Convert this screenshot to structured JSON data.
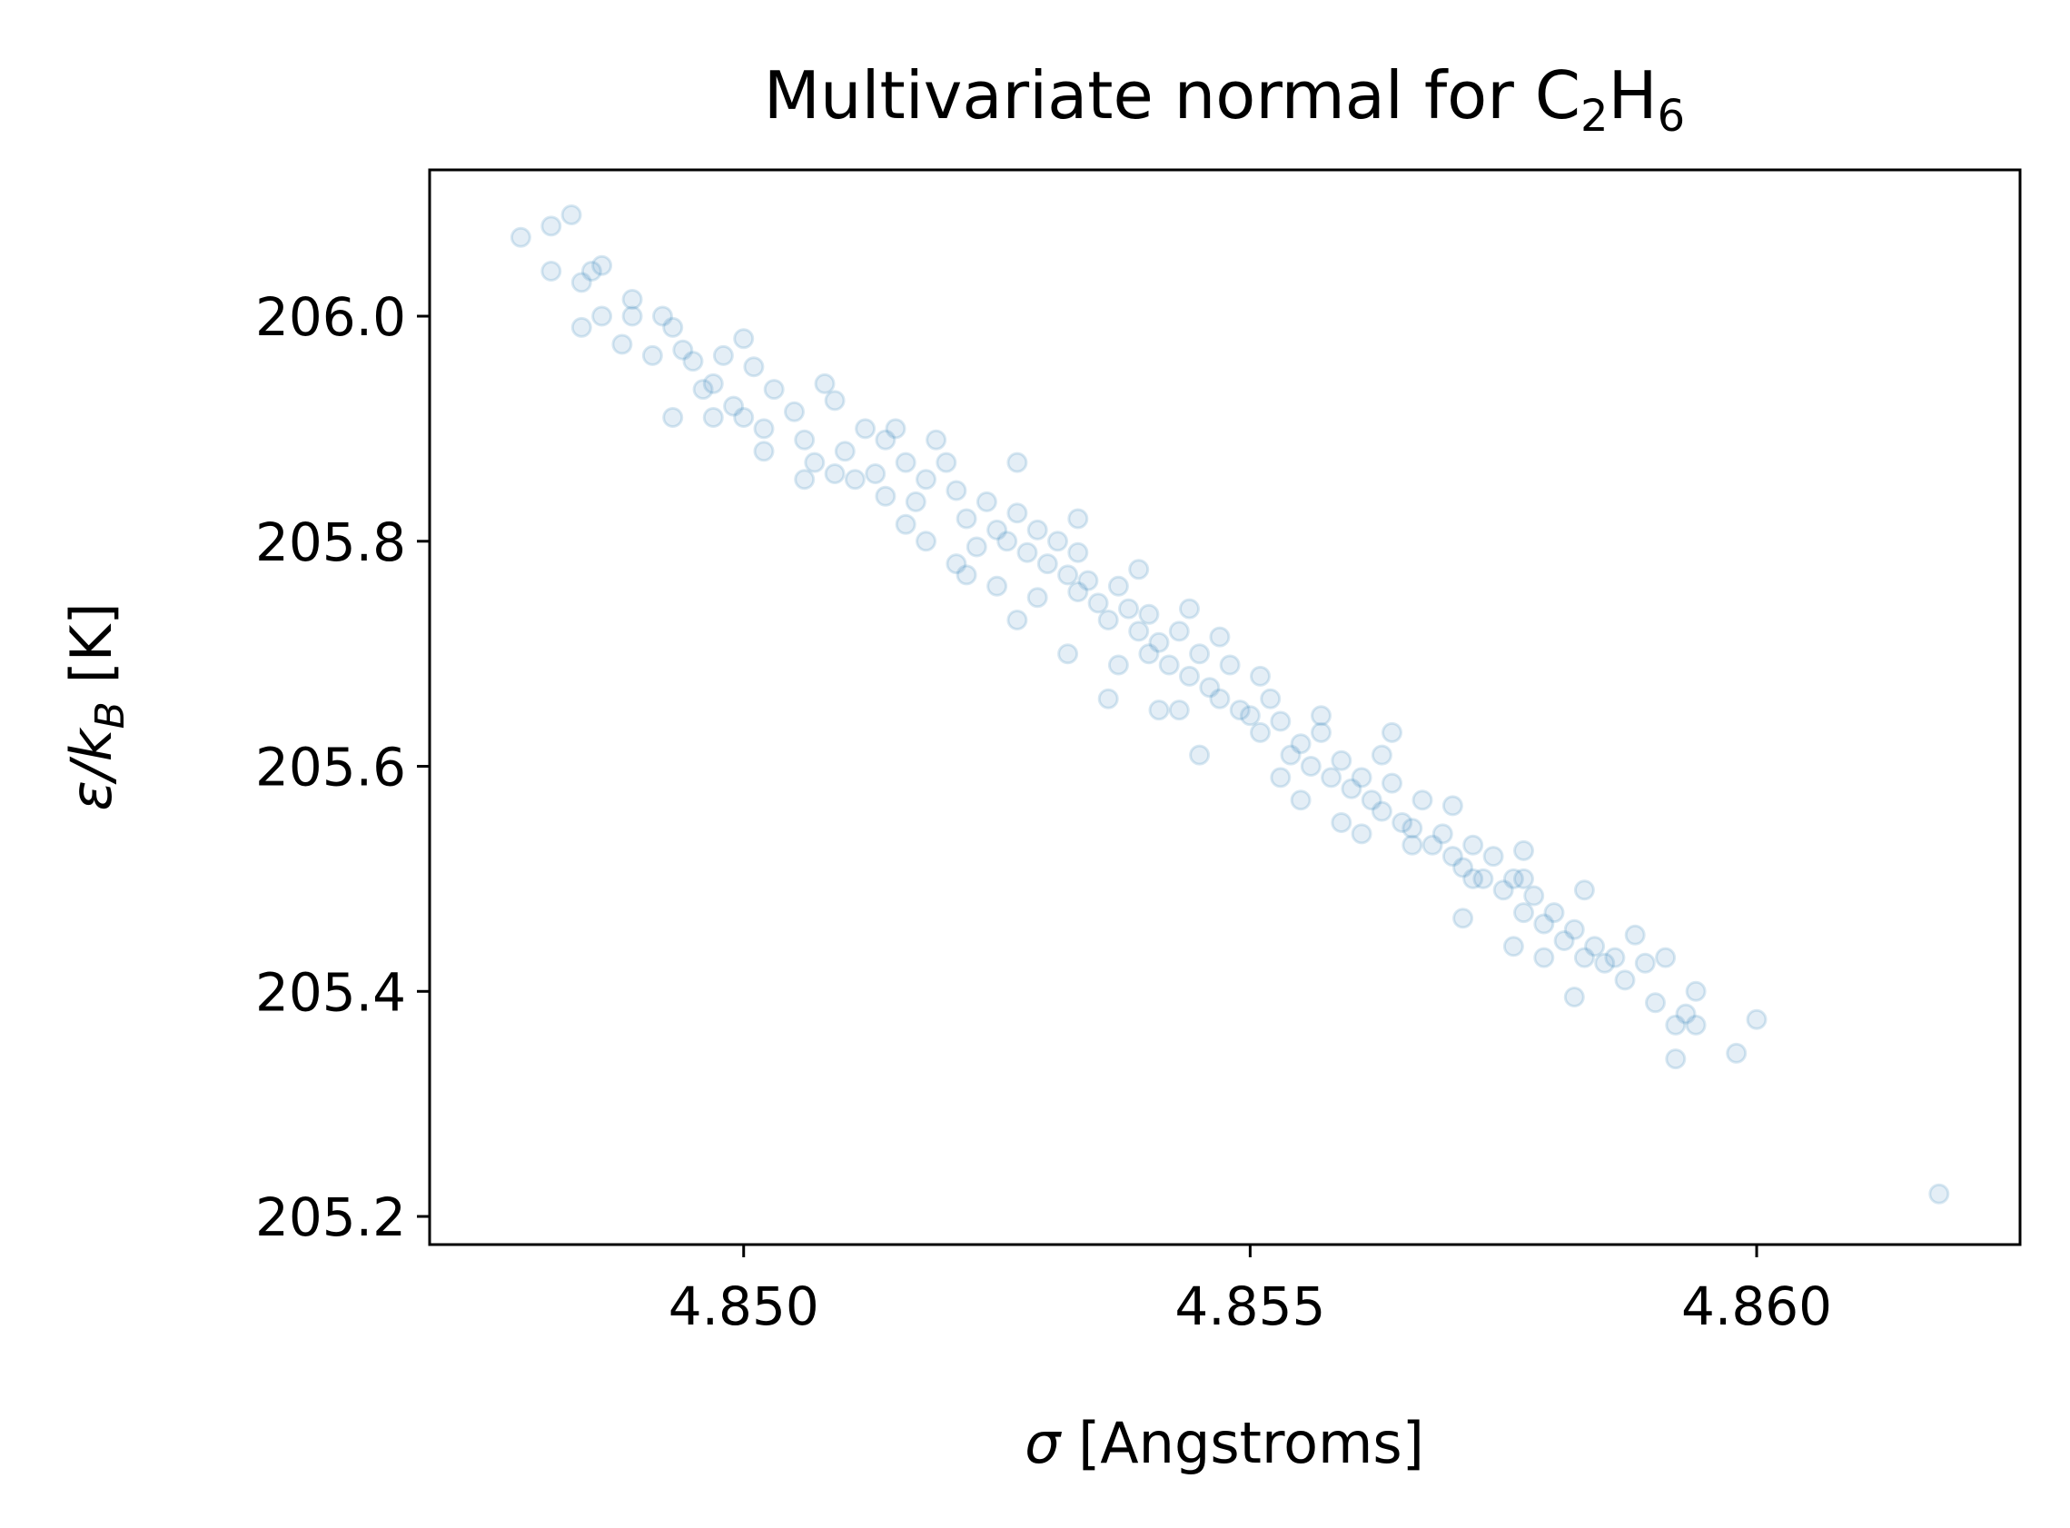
{
  "chart_data": {
    "type": "scatter",
    "title": {
      "main": "Multivariate normal for C",
      "sub1": "2",
      "mid": "H",
      "sub2": "6"
    },
    "xlabel": {
      "symbol": "σ",
      "text": " [Angstroms]"
    },
    "ylabel": {
      "symbol": "ε/k",
      "sub": "B",
      "text": " [K]"
    },
    "xlim": [
      4.8469,
      4.8626
    ],
    "ylim": [
      205.175,
      206.13
    ],
    "x_ticks": [
      4.85,
      4.855,
      4.86
    ],
    "x_tick_labels": [
      "4.850",
      "4.855",
      "4.860"
    ],
    "y_ticks": [
      205.2,
      205.4,
      205.6,
      205.8,
      206.0
    ],
    "y_tick_labels": [
      "205.2",
      "205.4",
      "205.6",
      "205.8",
      "206.0"
    ],
    "grid": false,
    "legend": "none",
    "series": [
      {
        "color": "#1f77b4",
        "marker": "circle",
        "alpha": 0.12,
        "points": [
          [
            4.8478,
            206.07
          ],
          [
            4.8481,
            206.08
          ],
          [
            4.8483,
            206.09
          ],
          [
            4.8481,
            206.04
          ],
          [
            4.8484,
            206.03
          ],
          [
            4.8485,
            206.04
          ],
          [
            4.8486,
            206.045
          ],
          [
            4.8484,
            205.99
          ],
          [
            4.8486,
            206.0
          ],
          [
            4.8489,
            206.015
          ],
          [
            4.8489,
            206.0
          ],
          [
            4.8488,
            205.975
          ],
          [
            4.8491,
            205.965
          ],
          [
            4.8492,
            206.0
          ],
          [
            4.8493,
            205.99
          ],
          [
            4.8494,
            205.97
          ],
          [
            4.8495,
            205.96
          ],
          [
            4.8496,
            205.935
          ],
          [
            4.8497,
            205.94
          ],
          [
            4.8498,
            205.965
          ],
          [
            4.85,
            205.98
          ],
          [
            4.8501,
            205.955
          ],
          [
            4.8499,
            205.92
          ],
          [
            4.8502,
            205.9
          ],
          [
            4.8503,
            205.935
          ],
          [
            4.8505,
            205.915
          ],
          [
            4.8506,
            205.89
          ],
          [
            4.8508,
            205.94
          ],
          [
            4.8509,
            205.925
          ],
          [
            4.8493,
            205.91
          ],
          [
            4.8497,
            205.91
          ],
          [
            4.85,
            205.91
          ],
          [
            4.8502,
            205.88
          ],
          [
            4.8507,
            205.87
          ],
          [
            4.851,
            205.88
          ],
          [
            4.8512,
            205.9
          ],
          [
            4.8514,
            205.89
          ],
          [
            4.8513,
            205.86
          ],
          [
            4.8516,
            205.87
          ],
          [
            4.8518,
            205.855
          ],
          [
            4.8519,
            205.89
          ],
          [
            4.852,
            205.87
          ],
          [
            4.8517,
            205.835
          ],
          [
            4.8521,
            205.845
          ],
          [
            4.8522,
            205.82
          ],
          [
            4.8524,
            205.835
          ],
          [
            4.8525,
            205.81
          ],
          [
            4.8523,
            205.795
          ],
          [
            4.8526,
            205.8
          ],
          [
            4.8527,
            205.825
          ],
          [
            4.8528,
            205.79
          ],
          [
            4.8529,
            205.81
          ],
          [
            4.853,
            205.78
          ],
          [
            4.8531,
            205.8
          ],
          [
            4.8532,
            205.77
          ],
          [
            4.8533,
            205.79
          ],
          [
            4.8533,
            205.755
          ],
          [
            4.8534,
            205.765
          ],
          [
            4.8535,
            205.745
          ],
          [
            4.8536,
            205.73
          ],
          [
            4.8537,
            205.76
          ],
          [
            4.8538,
            205.74
          ],
          [
            4.8539,
            205.72
          ],
          [
            4.854,
            205.735
          ],
          [
            4.854,
            205.7
          ],
          [
            4.8541,
            205.71
          ],
          [
            4.8542,
            205.69
          ],
          [
            4.8543,
            205.72
          ],
          [
            4.8544,
            205.68
          ],
          [
            4.8545,
            205.7
          ],
          [
            4.8546,
            205.67
          ],
          [
            4.8547,
            205.66
          ],
          [
            4.8548,
            205.69
          ],
          [
            4.8549,
            205.65
          ],
          [
            4.855,
            205.645
          ],
          [
            4.8551,
            205.63
          ],
          [
            4.8552,
            205.66
          ],
          [
            4.8553,
            205.64
          ],
          [
            4.8554,
            205.61
          ],
          [
            4.8555,
            205.62
          ],
          [
            4.8556,
            205.6
          ],
          [
            4.8557,
            205.63
          ],
          [
            4.8558,
            205.59
          ],
          [
            4.8559,
            205.605
          ],
          [
            4.856,
            205.58
          ],
          [
            4.8561,
            205.59
          ],
          [
            4.8562,
            205.57
          ],
          [
            4.8563,
            205.56
          ],
          [
            4.8564,
            205.585
          ],
          [
            4.8565,
            205.55
          ],
          [
            4.8566,
            205.545
          ],
          [
            4.8567,
            205.57
          ],
          [
            4.8568,
            205.53
          ],
          [
            4.8569,
            205.54
          ],
          [
            4.857,
            205.52
          ],
          [
            4.8571,
            205.51
          ],
          [
            4.8572,
            205.53
          ],
          [
            4.8573,
            205.5
          ],
          [
            4.8574,
            205.52
          ],
          [
            4.8575,
            205.49
          ],
          [
            4.8576,
            205.5
          ],
          [
            4.8577,
            205.47
          ],
          [
            4.8578,
            205.485
          ],
          [
            4.8579,
            205.46
          ],
          [
            4.858,
            205.47
          ],
          [
            4.8581,
            205.445
          ],
          [
            4.8582,
            205.455
          ],
          [
            4.8583,
            205.43
          ],
          [
            4.8584,
            205.44
          ],
          [
            4.8585,
            205.425
          ],
          [
            4.8586,
            205.43
          ],
          [
            4.8587,
            205.41
          ],
          [
            4.8589,
            205.425
          ],
          [
            4.859,
            205.39
          ],
          [
            4.8591,
            205.43
          ],
          [
            4.8592,
            205.37
          ],
          [
            4.8593,
            205.38
          ],
          [
            4.8594,
            205.4
          ],
          [
            4.8594,
            205.37
          ],
          [
            4.8592,
            205.34
          ],
          [
            4.8598,
            205.345
          ],
          [
            4.86,
            205.375
          ],
          [
            4.8618,
            205.22
          ],
          [
            4.8577,
            205.5
          ],
          [
            4.8582,
            205.395
          ],
          [
            4.8571,
            205.465
          ],
          [
            4.8564,
            205.63
          ],
          [
            4.8561,
            205.54
          ],
          [
            4.8553,
            205.59
          ],
          [
            4.8543,
            205.65
          ],
          [
            4.8547,
            205.715
          ],
          [
            4.8532,
            205.7
          ],
          [
            4.8537,
            205.69
          ],
          [
            4.8529,
            205.75
          ],
          [
            4.8525,
            205.76
          ],
          [
            4.8518,
            205.8
          ],
          [
            4.8522,
            205.77
          ],
          [
            4.8514,
            205.84
          ],
          [
            4.8511,
            205.855
          ],
          [
            4.8515,
            205.9
          ],
          [
            4.8527,
            205.87
          ],
          [
            4.8533,
            205.82
          ],
          [
            4.8539,
            205.775
          ],
          [
            4.8544,
            205.74
          ],
          [
            4.8551,
            205.68
          ],
          [
            4.8557,
            205.645
          ],
          [
            4.8563,
            205.61
          ],
          [
            4.857,
            205.565
          ],
          [
            4.8577,
            205.525
          ],
          [
            4.8583,
            205.49
          ],
          [
            4.8588,
            205.45
          ],
          [
            4.8541,
            205.65
          ],
          [
            4.8536,
            205.66
          ],
          [
            4.8527,
            205.73
          ],
          [
            4.8521,
            205.78
          ],
          [
            4.8516,
            205.815
          ],
          [
            4.8509,
            205.86
          ],
          [
            4.8506,
            205.855
          ],
          [
            4.8545,
            205.61
          ],
          [
            4.8555,
            205.57
          ],
          [
            4.8559,
            205.55
          ],
          [
            4.8566,
            205.53
          ],
          [
            4.8572,
            205.5
          ],
          [
            4.8579,
            205.43
          ],
          [
            4.8576,
            205.44
          ]
        ]
      }
    ]
  }
}
